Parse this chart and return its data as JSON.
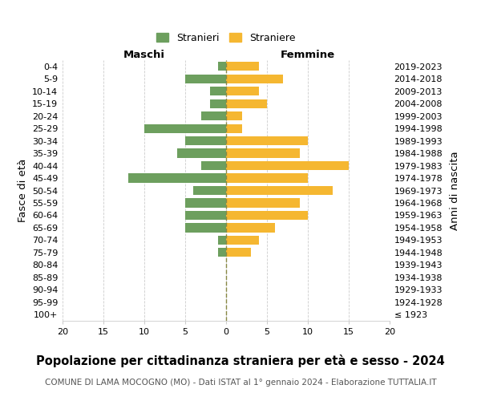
{
  "age_groups": [
    "100+",
    "95-99",
    "90-94",
    "85-89",
    "80-84",
    "75-79",
    "70-74",
    "65-69",
    "60-64",
    "55-59",
    "50-54",
    "45-49",
    "40-44",
    "35-39",
    "30-34",
    "25-29",
    "20-24",
    "15-19",
    "10-14",
    "5-9",
    "0-4"
  ],
  "birth_years": [
    "≤ 1923",
    "1924-1928",
    "1929-1933",
    "1934-1938",
    "1939-1943",
    "1944-1948",
    "1949-1953",
    "1954-1958",
    "1959-1963",
    "1964-1968",
    "1969-1973",
    "1974-1978",
    "1979-1983",
    "1984-1988",
    "1989-1993",
    "1994-1998",
    "1999-2003",
    "2004-2008",
    "2009-2013",
    "2014-2018",
    "2019-2023"
  ],
  "males": [
    0,
    0,
    0,
    0,
    0,
    1,
    1,
    5,
    5,
    5,
    4,
    12,
    3,
    6,
    5,
    10,
    3,
    2,
    2,
    5,
    1
  ],
  "females": [
    0,
    0,
    0,
    0,
    0,
    3,
    4,
    6,
    10,
    9,
    13,
    10,
    15,
    9,
    10,
    2,
    2,
    5,
    4,
    7,
    4
  ],
  "male_color": "#6d9f5e",
  "female_color": "#f5b731",
  "grid_color": "#cccccc",
  "zeroline_color": "#888844",
  "title": "Popolazione per cittadinanza straniera per età e sesso - 2024",
  "subtitle": "COMUNE DI LAMA MOCOGNO (MO) - Dati ISTAT al 1° gennaio 2024 - Elaborazione TUTTALIA.IT",
  "xlabel_left": "Maschi",
  "xlabel_right": "Femmine",
  "ylabel_left": "Fasce di età",
  "ylabel_right": "Anni di nascita",
  "legend_male": "Stranieri",
  "legend_female": "Straniere",
  "xlim": 20,
  "title_fontsize": 10.5,
  "subtitle_fontsize": 7.5,
  "tick_fontsize": 8,
  "label_fontsize": 9.5
}
